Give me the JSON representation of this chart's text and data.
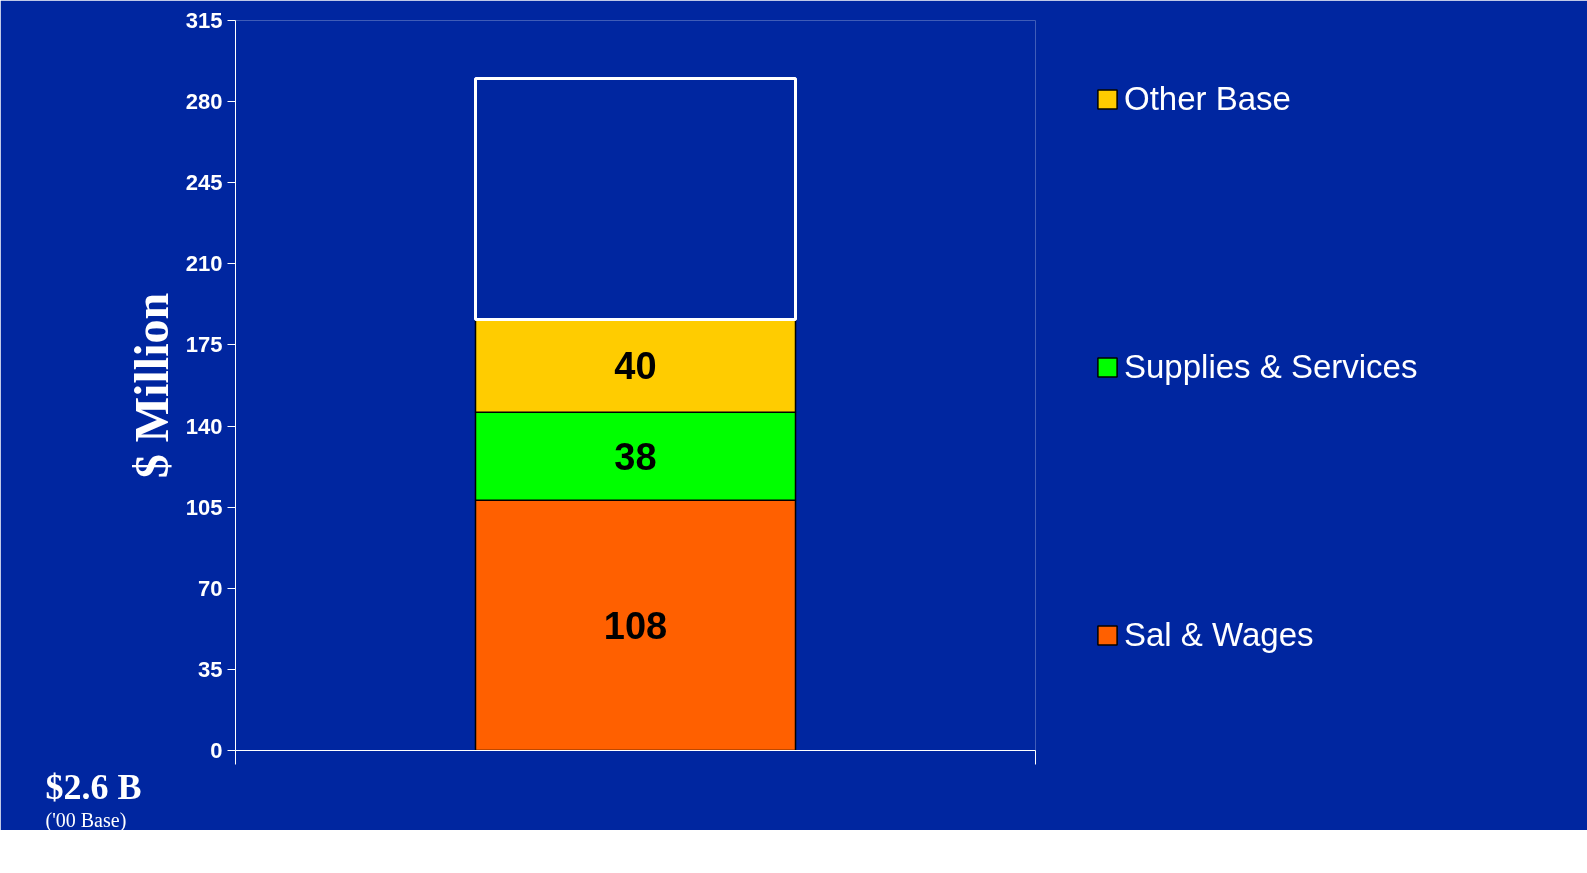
{
  "chart_data": {
    "type": "bar",
    "stacked": true,
    "ylabel": "$ Million",
    "categories": [
      null
    ],
    "series": [
      {
        "name": "Sal & Wages",
        "color": "#ff6000",
        "values": [
          108
        ],
        "value_labels": [
          "108"
        ]
      },
      {
        "name": "Supplies & Services",
        "color": "#00ff00",
        "values": [
          38
        ],
        "value_labels": [
          "38"
        ]
      },
      {
        "name": "Other Base",
        "color": "#ffcc00",
        "values": [
          40
        ],
        "value_labels": [
          "40"
        ]
      },
      {
        "color": null,
        "values": [
          104
        ],
        "value_labels": [
          null
        ]
      }
    ],
    "ylim": [
      0,
      315
    ],
    "yticks": [
      0,
      35,
      70,
      105,
      140,
      175,
      210,
      245,
      280,
      315
    ],
    "grid": false,
    "legend": "right",
    "tick_labels": "y",
    "annotations": [
      "$2.6 B",
      "('00 Base)"
    ]
  }
}
